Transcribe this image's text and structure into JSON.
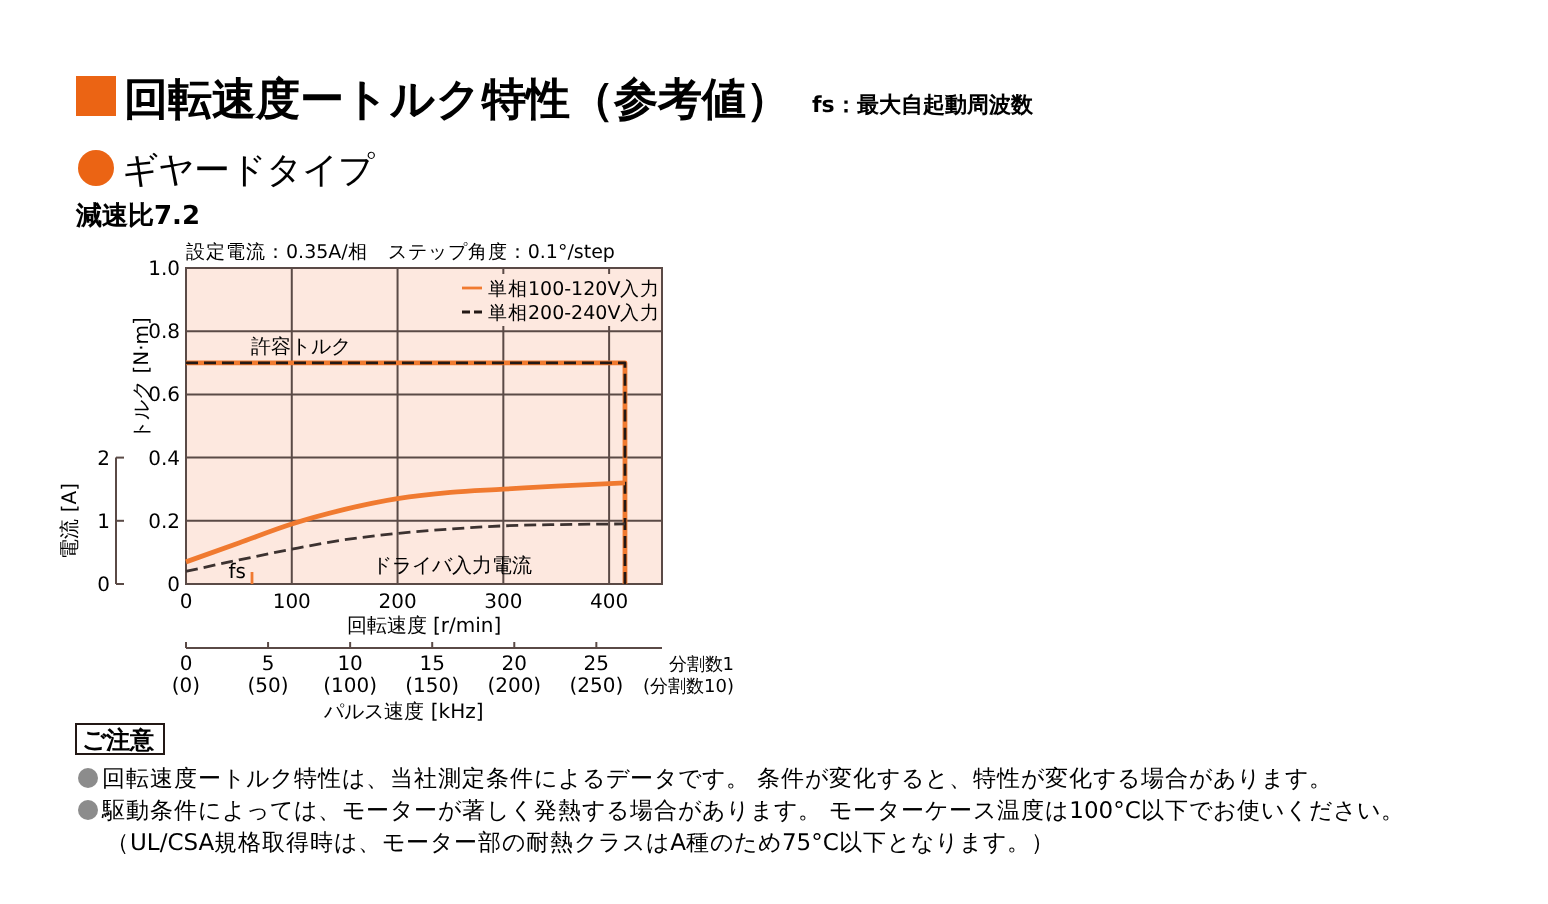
{
  "chart_data": {
    "type": "line",
    "title": "回転速度ートルク特性（参考値）",
    "subtitle": "fs：最大自起動周波数",
    "xlabel": "回転速度 [r/min]",
    "ylabel": "トルク [N·m]",
    "y2label": "電流 [A]",
    "x2label": "パルス速度 [kHz]",
    "xlim": [
      0,
      450
    ],
    "xticks": [
      0,
      100,
      200,
      300,
      400
    ],
    "ylim": [
      0,
      1
    ],
    "yticks": [
      0,
      0.2,
      0.4,
      0.6,
      0.8,
      {
        "value": 1,
        "label": "1.0"
      }
    ],
    "y2lim": [
      0,
      5
    ],
    "y2ticks": [
      0,
      1,
      2
    ],
    "x2lim": [
      0,
      29
    ],
    "x2ticks": [
      0,
      5,
      10,
      15,
      20,
      25
    ],
    "grid": true,
    "legend": "top right",
    "series": [
      {
        "name": "単相100-120V入力",
        "color": "#f07a30",
        "line_style": "solid",
        "x": [
          0,
          415,
          415
        ],
        "values": [
          0.7,
          0.7,
          0
        ]
      },
      {
        "name": "単相200-240V入力",
        "color": "#231815",
        "line_style": "dashed",
        "x": [
          0,
          415,
          415
        ],
        "values": [
          0.7,
          0.7,
          0
        ]
      },
      {
        "color": "#f07a30",
        "line_style": "solid",
        "axis": "y2",
        "x": [
          0,
          50,
          100,
          150,
          200,
          250,
          300,
          350,
          415
        ],
        "values": [
          0.35,
          0.65,
          0.95,
          1.18,
          1.35,
          1.45,
          1.5,
          1.55,
          1.6
        ]
      },
      {
        "color": "#3c3230",
        "line_style": "dashed",
        "axis": "y2",
        "x": [
          0,
          50,
          100,
          150,
          200,
          250,
          300,
          350,
          415
        ],
        "values": [
          0.2,
          0.38,
          0.55,
          0.7,
          0.8,
          0.87,
          0.92,
          0.94,
          0.95
        ]
      }
    ],
    "annotations": [
      "設定電流：0.35A/相　ステップ角度：0.1°/step",
      {
        "text": "許容トルク",
        "x": 61,
        "y": 0.7
      },
      "ドライバ入力電流",
      "fs",
      "分割数1\n(分割数10)",
      "ギヤードタイプ",
      "減速比7.2",
      "ご注意",
      "回転速度ートルク特性は、当社測定条件によるデータです。 条件が変化すると、特性が変化する場合があります。",
      "駆動条件によっては、モーターが著しく発熱する場合があります。 モーターケース温度は100°C以下でお使いください。",
      "（UL/CSA規格取得時は、モーター部の耐熱クラスはA種のため75°C以下となります。）",
      "(0)",
      "(50)",
      "(100)",
      "(150)",
      "(200)",
      "(250)"
    ]
  }
}
